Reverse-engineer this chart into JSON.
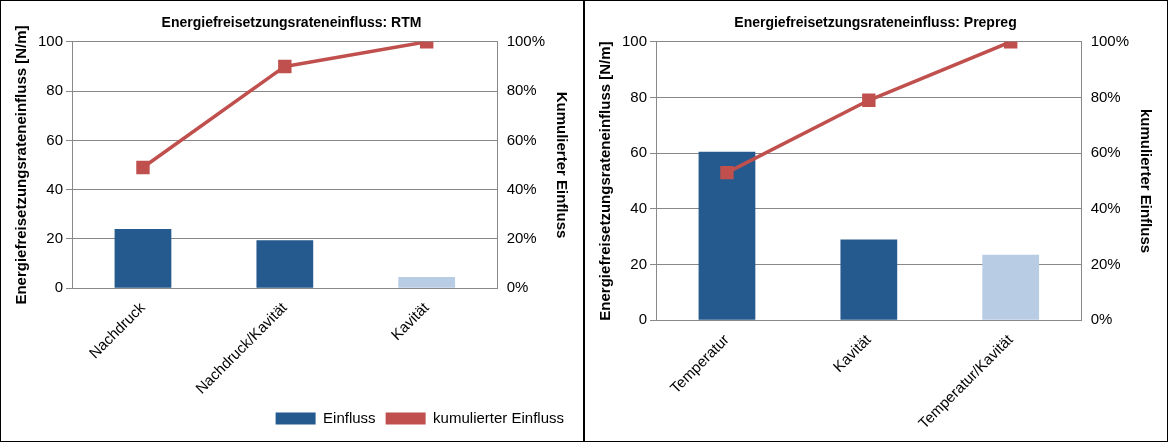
{
  "chart_data": [
    {
      "type": "bar",
      "title": "Energiefreisetzungsrateneinfluss: RTM",
      "ylabel": "Energiefreisetzungsrateneinfluss [N/m]",
      "y2label": "Kumulierter Einfluss",
      "categories": [
        "Nachdruck",
        "Nachdruck/Kavität",
        "Kavität"
      ],
      "series": [
        {
          "name": "Einfluss",
          "type": "bar",
          "color": "#245a8e",
          "colors": [
            "#245a8e",
            "#245a8e",
            "#b8cce4"
          ],
          "values": [
            24,
            19.5,
            4.5
          ]
        },
        {
          "name": "kumulierter Einfluss",
          "type": "line",
          "axis": "y2",
          "color": "#c0504d",
          "marker": "square",
          "values": [
            49,
            90,
            100
          ]
        }
      ],
      "ylim": [
        0,
        100
      ],
      "yticks": [
        0,
        20,
        40,
        60,
        80,
        100
      ],
      "y2lim": [
        0,
        100
      ],
      "y2ticks": [
        {
          "value": 0,
          "label": "0%"
        },
        {
          "value": 20,
          "label": "20%"
        },
        {
          "value": 40,
          "label": "40%"
        },
        {
          "value": 60,
          "label": "60%"
        },
        {
          "value": 80,
          "label": "80%"
        },
        {
          "value": 100,
          "label": "100%"
        }
      ],
      "grid": "y",
      "legend": "bottom right"
    },
    {
      "type": "bar",
      "title": "Energiefreisetzungsrateneinfluss: Prepreg",
      "ylabel": "Energiefreisetzungsrateneinfluss [N/m]",
      "y2label": "kumulierter Einfluss",
      "categories": [
        "Temperatur",
        "Kavität",
        "Temperatur/Kavität"
      ],
      "series": [
        {
          "type": "bar",
          "color": "#245a8e",
          "colors": [
            "#245a8e",
            "#245a8e",
            "#b8cce4"
          ],
          "values": [
            60.5,
            29,
            23.5
          ]
        },
        {
          "type": "line",
          "axis": "y2",
          "color": "#c0504d",
          "marker": "square",
          "values": [
            53,
            79,
            100
          ]
        }
      ],
      "ylim": [
        0,
        100
      ],
      "yticks": [
        0,
        20,
        40,
        60,
        80,
        100
      ],
      "y2lim": [
        0,
        100
      ],
      "y2ticks": [
        {
          "value": 0,
          "label": "0%"
        },
        {
          "value": 20,
          "label": "20%"
        },
        {
          "value": 40,
          "label": "40%"
        },
        {
          "value": 60,
          "label": "60%"
        },
        {
          "value": 80,
          "label": "80%"
        },
        {
          "value": 100,
          "label": "100%"
        }
      ],
      "grid": "y",
      "legend": false
    }
  ]
}
